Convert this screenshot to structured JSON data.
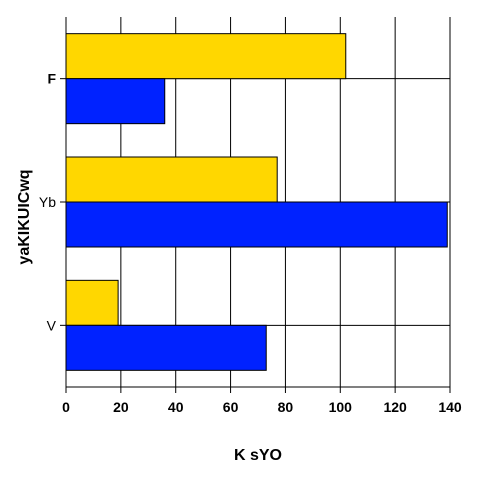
{
  "chart_data": {
    "type": "bar",
    "orientation": "horizontal",
    "categories": [
      "F",
      "Yb",
      "V"
    ],
    "category_label_bold": [
      true,
      false,
      false
    ],
    "series": [
      {
        "color": "#ffd700",
        "values": [
          102,
          77,
          19
        ]
      },
      {
        "color": "#0022ff",
        "values": [
          36,
          139,
          73
        ]
      }
    ],
    "xlabel": "K sYO",
    "ylabel": "yaKIKUICwq",
    "xlim": [
      0,
      140
    ],
    "xticks": [
      0,
      20,
      40,
      60,
      80,
      100,
      120,
      140
    ],
    "grid": true,
    "legend": "none"
  }
}
